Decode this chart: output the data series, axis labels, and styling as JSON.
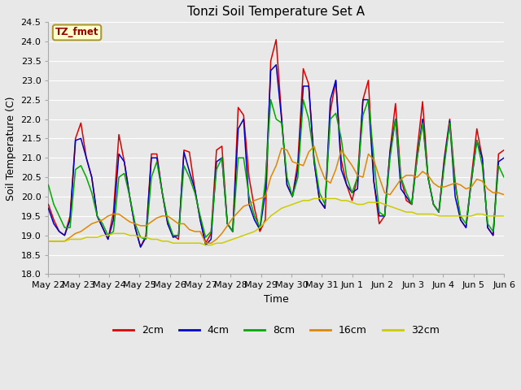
{
  "title": "Tonzi Soil Temperature Set A",
  "xlabel": "Time",
  "ylabel": "Soil Temperature (C)",
  "ylim": [
    18.0,
    24.5
  ],
  "yticks": [
    18.0,
    18.5,
    19.0,
    19.5,
    20.0,
    20.5,
    21.0,
    21.5,
    22.0,
    22.5,
    23.0,
    23.5,
    24.0,
    24.5
  ],
  "xtick_labels": [
    "May 22",
    "May 23",
    "May 24",
    "May 25",
    "May 26",
    "May 27",
    "May 28",
    "May 29",
    "May 30",
    "May 31",
    "Jun 1",
    "Jun 2",
    "Jun 3",
    "Jun 4",
    "Jun 5",
    "Jun 6"
  ],
  "legend_entries": [
    "2cm",
    "4cm",
    "8cm",
    "16cm",
    "32cm"
  ],
  "line_colors": [
    "#dd0000",
    "#0000cc",
    "#00aa00",
    "#dd8800",
    "#cccc00"
  ],
  "annotation_text": "TZ_fmet",
  "annotation_color": "#990000",
  "annotation_bg": "#ffffcc",
  "annotation_border": "#aa9933",
  "bg_color": "#e8e8e8",
  "grid_color": "white",
  "spine_color": "#aaaaaa",
  "title_fontsize": 11,
  "tick_fontsize": 8,
  "label_fontsize": 9,
  "series": {
    "2cm": [
      19.8,
      19.4,
      19.1,
      19.0,
      19.5,
      21.5,
      21.9,
      21.0,
      20.5,
      19.5,
      19.2,
      18.9,
      19.6,
      21.6,
      20.9,
      20.0,
      19.2,
      18.7,
      19.0,
      21.1,
      21.1,
      20.1,
      19.3,
      19.0,
      18.9,
      21.2,
      21.15,
      20.2,
      19.4,
      18.8,
      19.05,
      21.2,
      21.3,
      19.3,
      19.1,
      22.3,
      22.1,
      20.5,
      19.7,
      19.1,
      19.4,
      23.5,
      24.05,
      22.05,
      20.3,
      20.0,
      20.9,
      23.3,
      22.9,
      20.9,
      19.9,
      19.7,
      22.2,
      23.0,
      20.95,
      20.3,
      19.9,
      20.5,
      22.5,
      23.0,
      20.4,
      19.3,
      19.5,
      21.2,
      22.4,
      20.5,
      19.9,
      19.8,
      21.2,
      22.45,
      20.5,
      19.8,
      19.6,
      21.0,
      22.0,
      20.4,
      19.4,
      19.2,
      20.5,
      21.75,
      21.0,
      19.2,
      19.0,
      21.1,
      21.2
    ],
    "4cm": [
      19.7,
      19.3,
      19.1,
      19.0,
      19.4,
      21.45,
      21.5,
      21.0,
      20.5,
      19.5,
      19.2,
      18.9,
      19.4,
      21.1,
      20.9,
      20.0,
      19.2,
      18.7,
      18.95,
      21.0,
      21.0,
      20.1,
      19.3,
      18.95,
      19.0,
      21.15,
      20.65,
      20.2,
      19.4,
      18.75,
      18.9,
      20.9,
      21.0,
      19.3,
      19.1,
      21.75,
      22.0,
      19.8,
      19.4,
      19.15,
      20.1,
      23.25,
      23.4,
      22.0,
      20.3,
      20.0,
      20.7,
      22.85,
      22.85,
      20.9,
      19.9,
      19.7,
      22.5,
      23.0,
      20.7,
      20.3,
      20.1,
      20.2,
      22.5,
      22.5,
      20.4,
      19.5,
      19.5,
      21.15,
      22.0,
      20.2,
      20.0,
      19.8,
      21.0,
      22.0,
      20.5,
      19.8,
      19.6,
      20.9,
      21.95,
      20.0,
      19.4,
      19.2,
      20.4,
      21.45,
      21.0,
      19.2,
      19.0,
      20.9,
      21.0
    ],
    "8cm": [
      20.3,
      19.8,
      19.5,
      19.2,
      19.2,
      20.7,
      20.8,
      20.5,
      20.1,
      19.5,
      19.3,
      19.0,
      19.1,
      20.5,
      20.6,
      20.0,
      19.3,
      18.95,
      18.9,
      20.5,
      20.9,
      20.1,
      19.4,
      19.0,
      19.0,
      20.8,
      20.5,
      20.1,
      19.5,
      18.95,
      19.1,
      20.7,
      21.0,
      19.3,
      19.1,
      21.0,
      21.0,
      20.0,
      19.5,
      19.2,
      20.4,
      22.5,
      22.0,
      21.9,
      20.5,
      20.0,
      20.5,
      22.5,
      22.0,
      21.0,
      20.1,
      19.8,
      22.0,
      22.15,
      21.5,
      20.5,
      20.1,
      20.5,
      22.1,
      22.5,
      21.0,
      19.6,
      19.5,
      21.0,
      22.0,
      20.5,
      20.1,
      19.8,
      21.0,
      21.9,
      20.5,
      19.8,
      19.6,
      20.8,
      21.9,
      20.3,
      19.5,
      19.3,
      20.4,
      21.45,
      20.8,
      19.3,
      19.1,
      20.8,
      20.5
    ],
    "16cm": [
      18.85,
      18.85,
      18.85,
      18.85,
      18.95,
      19.05,
      19.1,
      19.2,
      19.3,
      19.35,
      19.4,
      19.5,
      19.55,
      19.55,
      19.45,
      19.35,
      19.3,
      19.25,
      19.25,
      19.35,
      19.45,
      19.5,
      19.5,
      19.4,
      19.3,
      19.3,
      19.15,
      19.1,
      19.1,
      18.8,
      18.8,
      18.9,
      19.05,
      19.25,
      19.45,
      19.6,
      19.75,
      19.8,
      19.9,
      19.95,
      20.0,
      20.5,
      20.8,
      21.25,
      21.2,
      20.9,
      20.85,
      20.8,
      21.15,
      21.3,
      20.8,
      20.45,
      20.35,
      20.7,
      21.2,
      21.0,
      20.8,
      20.55,
      20.5,
      21.1,
      20.95,
      20.5,
      20.1,
      20.05,
      20.25,
      20.45,
      20.55,
      20.55,
      20.5,
      20.65,
      20.55,
      20.35,
      20.25,
      20.25,
      20.3,
      20.35,
      20.3,
      20.2,
      20.25,
      20.45,
      20.4,
      20.2,
      20.1,
      20.1,
      20.05
    ],
    "32cm": [
      18.85,
      18.85,
      18.85,
      18.85,
      18.9,
      18.9,
      18.9,
      18.95,
      18.95,
      18.95,
      19.0,
      19.0,
      19.05,
      19.05,
      19.05,
      19.0,
      19.0,
      18.95,
      18.95,
      18.9,
      18.9,
      18.85,
      18.85,
      18.8,
      18.8,
      18.8,
      18.8,
      18.8,
      18.8,
      18.75,
      18.75,
      18.8,
      18.8,
      18.85,
      18.9,
      18.95,
      19.0,
      19.05,
      19.1,
      19.2,
      19.35,
      19.5,
      19.6,
      19.7,
      19.75,
      19.8,
      19.85,
      19.9,
      19.9,
      19.95,
      19.95,
      19.95,
      19.95,
      19.95,
      19.9,
      19.9,
      19.85,
      19.8,
      19.8,
      19.85,
      19.85,
      19.85,
      19.8,
      19.75,
      19.7,
      19.65,
      19.6,
      19.6,
      19.55,
      19.55,
      19.55,
      19.55,
      19.5,
      19.5,
      19.5,
      19.5,
      19.5,
      19.5,
      19.5,
      19.55,
      19.55,
      19.5,
      19.5,
      19.5,
      19.5
    ]
  }
}
